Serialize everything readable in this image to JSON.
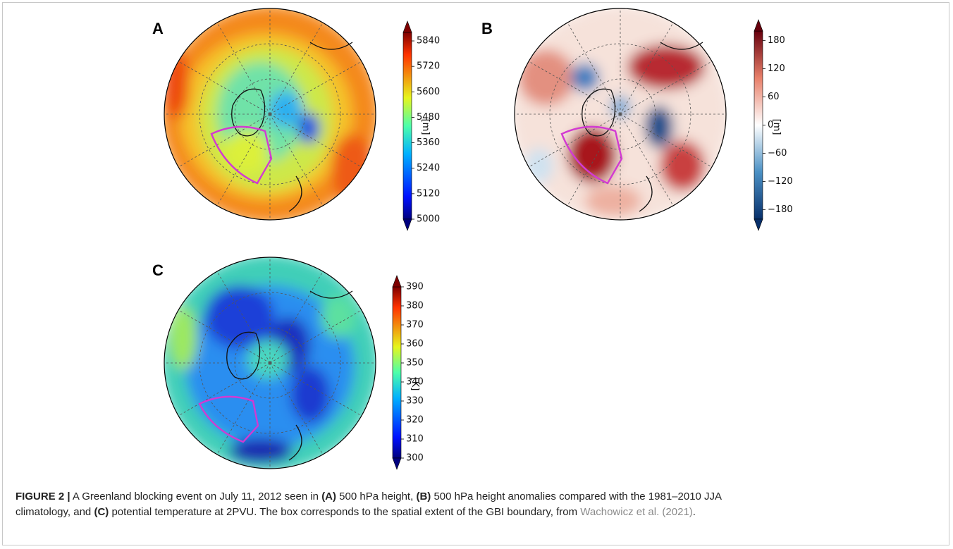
{
  "figure": {
    "panels": [
      {
        "label": "A",
        "colorbar": {
          "lim": [
            5000,
            5880
          ],
          "ticks": [
            5000,
            5120,
            5240,
            5360,
            5480,
            5600,
            5720,
            5840
          ],
          "unit": "[m]"
        }
      },
      {
        "label": "B",
        "colorbar": {
          "lim": [
            -200,
            200
          ],
          "ticks": [
            {
              "value": -180,
              "label": "−180"
            },
            {
              "value": -120,
              "label": "−120"
            },
            {
              "value": -60,
              "label": "−60"
            },
            0,
            60,
            120,
            180
          ],
          "unit": "[m]"
        }
      },
      {
        "label": "C",
        "colorbar": {
          "lim": [
            300,
            390
          ],
          "ticks": [
            300,
            310,
            320,
            330,
            340,
            350,
            360,
            370,
            380,
            390
          ],
          "unit": "[K]"
        }
      }
    ]
  },
  "caption": {
    "lines": [
      [
        "FIGURE 2 |",
        " A Greenland blocking event on July 11, 2012 seen in ",
        "(A)",
        " 500 hPa height, ",
        "(B)",
        " 500 hPa height anomalies compared with the 1981–2010 JJA"
      ],
      [
        "climatology, and ",
        "(C)",
        " potential temperature at 2PVU. The box corresponds to the spatial extent of the GBI boundary, from ",
        "Wachowicz et al. (2021)",
        "."
      ]
    ]
  }
}
